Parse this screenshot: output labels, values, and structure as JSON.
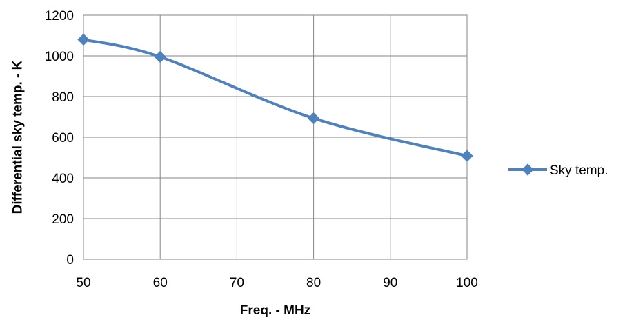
{
  "chart_data": {
    "type": "line",
    "title": "",
    "xlabel": "Freq. - MHz",
    "ylabel": "Differential sky temp. - K",
    "xlim": [
      50,
      100
    ],
    "ylim": [
      0,
      1200
    ],
    "xticks": [
      50,
      60,
      70,
      80,
      90,
      100
    ],
    "yticks": [
      0,
      200,
      400,
      600,
      800,
      1000,
      1200
    ],
    "x_tick_labels": [
      "50",
      "60",
      "70",
      "80",
      "90",
      "100"
    ],
    "y_tick_labels": [
      "0",
      "200",
      "400",
      "600",
      "800",
      "1000",
      "1200"
    ],
    "grid": true,
    "smooth": true,
    "legend_position": "right",
    "series": [
      {
        "name": "Sky temp.",
        "color": "#4f81bd",
        "marker": "diamond",
        "x": [
          50,
          60,
          80,
          100
        ],
        "y": [
          1080,
          995,
          693,
          508
        ]
      }
    ]
  }
}
